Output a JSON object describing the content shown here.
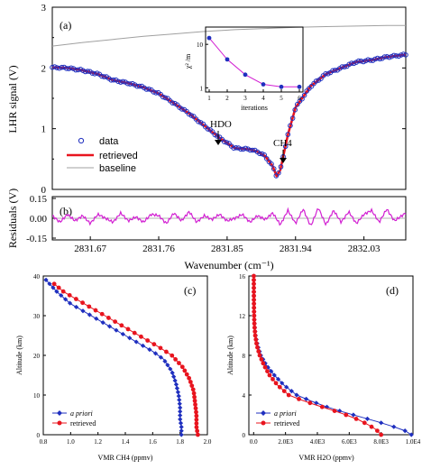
{
  "chart_data": [
    {
      "id": "a",
      "type": "line",
      "panel_label": "(a)",
      "ylabel": "LHR signal (V)",
      "xlim": [
        2831.62,
        2832.085
      ],
      "ylim": [
        0,
        3
      ],
      "yticks": [
        0,
        1,
        2,
        3
      ],
      "ytick_labels": [
        "0",
        "1",
        "2",
        "3"
      ],
      "legend": {
        "position": "lower-left",
        "entries": [
          "data",
          "retrieved",
          "baseline"
        ]
      },
      "annotations": [
        {
          "text": "HDO",
          "x": 2831.845,
          "y": 0.7
        },
        {
          "text": "CH4",
          "x": 2831.915,
          "y": 0.22
        }
      ],
      "series": [
        {
          "name": "data",
          "style": "open-circle",
          "color": "#1f2fbf",
          "x": [
            2831.62,
            2831.64,
            2831.66,
            2831.68,
            2831.7,
            2831.72,
            2831.74,
            2831.76,
            2831.78,
            2831.8,
            2831.82,
            2831.84,
            2831.86,
            2831.88,
            2831.89,
            2831.9,
            2831.91,
            2831.915,
            2831.92,
            2831.93,
            2831.94,
            2831.96,
            2831.98,
            2832.0,
            2832.02,
            2832.04,
            2832.06,
            2832.085
          ],
          "y": [
            2.01,
            2.0,
            1.96,
            1.9,
            1.8,
            1.75,
            1.68,
            1.58,
            1.42,
            1.25,
            1.05,
            0.85,
            0.68,
            0.66,
            0.62,
            0.55,
            0.38,
            0.22,
            0.32,
            0.9,
            1.35,
            1.7,
            1.9,
            2.0,
            2.1,
            2.13,
            2.18,
            2.22
          ]
        },
        {
          "name": "retrieved",
          "style": "line",
          "color": "#e8141e",
          "x": [
            2831.62,
            2831.64,
            2831.66,
            2831.68,
            2831.7,
            2831.72,
            2831.74,
            2831.76,
            2831.78,
            2831.8,
            2831.82,
            2831.84,
            2831.86,
            2831.88,
            2831.89,
            2831.9,
            2831.91,
            2831.915,
            2831.92,
            2831.93,
            2831.94,
            2831.96,
            2831.98,
            2832.0,
            2832.02,
            2832.04,
            2832.06,
            2832.085
          ],
          "y": [
            2.01,
            2.0,
            1.96,
            1.9,
            1.8,
            1.75,
            1.68,
            1.58,
            1.42,
            1.25,
            1.05,
            0.85,
            0.68,
            0.66,
            0.62,
            0.55,
            0.38,
            0.22,
            0.32,
            0.9,
            1.35,
            1.7,
            1.9,
            2.0,
            2.1,
            2.13,
            2.18,
            2.22
          ]
        },
        {
          "name": "baseline",
          "style": "line",
          "color": "#a0a0a0",
          "x": [
            2831.62,
            2831.66,
            2831.7,
            2831.74,
            2831.78,
            2831.82,
            2831.86,
            2831.9,
            2831.94,
            2831.98,
            2832.02,
            2832.06,
            2832.085
          ],
          "y": [
            2.36,
            2.42,
            2.47,
            2.52,
            2.56,
            2.6,
            2.63,
            2.65,
            2.67,
            2.68,
            2.69,
            2.7,
            2.7
          ]
        }
      ],
      "inset": {
        "xlabel": "iterations",
        "ylabel": "χ² /m",
        "xticks": [
          1,
          2,
          3,
          4,
          5,
          6
        ],
        "yticks": [
          1,
          10
        ],
        "ylog": true,
        "x": [
          1,
          2,
          3,
          4,
          5,
          6
        ],
        "y": [
          14,
          4.5,
          2.0,
          1.2,
          1.05,
          1.05
        ]
      }
    },
    {
      "id": "b",
      "type": "line",
      "panel_label": "(b)",
      "ylabel": "Residuals (V)",
      "xlabel": "Wavenumber (cm⁻¹)",
      "xlim": [
        2831.62,
        2832.085
      ],
      "ylim": [
        -0.15,
        0.15
      ],
      "yticks": [
        -0.15,
        0.0,
        0.15
      ],
      "ytick_labels": [
        "-0.15",
        "0.00",
        "0.15"
      ],
      "xticks": [
        2831.67,
        2831.76,
        2831.85,
        2831.94,
        2832.03
      ],
      "xtick_labels": [
        "2831.67",
        "2831.76",
        "2831.85",
        "2831.94",
        "2832.03"
      ],
      "series": [
        {
          "name": "residuals",
          "color": "#d21fd2",
          "x": [
            2831.62,
            2831.63,
            2831.64,
            2831.65,
            2831.66,
            2831.67,
            2831.68,
            2831.69,
            2831.7,
            2831.71,
            2831.72,
            2831.73,
            2831.74,
            2831.75,
            2831.76,
            2831.77,
            2831.78,
            2831.79,
            2831.8,
            2831.81,
            2831.82,
            2831.83,
            2831.84,
            2831.85,
            2831.86,
            2831.87,
            2831.88,
            2831.89,
            2831.9,
            2831.91,
            2831.92,
            2831.93,
            2831.94,
            2831.95,
            2831.96,
            2831.97,
            2831.98,
            2831.99,
            2832.0,
            2832.01,
            2832.02,
            2832.03,
            2832.04,
            2832.05,
            2832.06,
            2832.07,
            2832.085
          ],
          "y": [
            0.02,
            -0.03,
            0.03,
            -0.02,
            0.02,
            -0.04,
            0.03,
            0.0,
            -0.03,
            0.04,
            -0.02,
            0.01,
            -0.03,
            0.03,
            0.02,
            -0.04,
            0.04,
            -0.02,
            0.05,
            -0.03,
            0.02,
            -0.01,
            0.03,
            -0.02,
            0.0,
            0.03,
            -0.03,
            0.02,
            -0.01,
            0.04,
            -0.05,
            0.06,
            -0.04,
            0.07,
            -0.06,
            0.08,
            -0.05,
            0.06,
            -0.03,
            0.05,
            -0.04,
            0.03,
            0.06,
            -0.03,
            0.07,
            -0.02,
            0.04
          ]
        }
      ]
    },
    {
      "id": "c",
      "type": "line",
      "panel_label": "(c)",
      "xlabel": "VMR CH4 (ppmv)",
      "ylabel": "Altitude (km)",
      "xlim": [
        0.8,
        2.0
      ],
      "ylim": [
        0,
        40
      ],
      "xticks": [
        0.8,
        1.0,
        1.2,
        1.4,
        1.6,
        1.8,
        2.0
      ],
      "xtick_labels": [
        "0.8",
        "1.0",
        "1.2",
        "1.4",
        "1.6",
        "1.8",
        "2.0"
      ],
      "yticks": [
        0,
        10,
        20,
        30,
        40
      ],
      "ytick_labels": [
        "0",
        "10",
        "20",
        "30",
        "40"
      ],
      "legend": {
        "position": "lower-left",
        "entries": [
          "a priori",
          "retrieved"
        ]
      },
      "series": [
        {
          "name": "a priori",
          "color": "#1f2fbf",
          "marker": "diamond",
          "x": [
            0.82,
            0.9,
            1.0,
            1.1,
            1.2,
            1.3,
            1.4,
            1.5,
            1.6,
            1.68,
            1.74,
            1.77,
            1.79,
            1.8,
            1.8,
            1.81,
            1.81
          ],
          "y": [
            39,
            36,
            33,
            31,
            29,
            27,
            25,
            23,
            21,
            19,
            16,
            13,
            10,
            7,
            4,
            2,
            0
          ]
        },
        {
          "name": "retrieved",
          "color": "#e8141e",
          "marker": "circle",
          "x": [
            0.88,
            0.95,
            1.05,
            1.15,
            1.25,
            1.35,
            1.45,
            1.55,
            1.65,
            1.74,
            1.82,
            1.87,
            1.9,
            1.91,
            1.92,
            1.92,
            1.93
          ],
          "y": [
            38,
            36,
            34,
            32,
            30,
            28,
            26,
            24,
            22,
            20,
            17,
            14,
            11,
            8,
            5,
            2,
            0
          ]
        }
      ]
    },
    {
      "id": "d",
      "type": "line",
      "panel_label": "(d)",
      "xlabel": "VMR H2O (ppmv)",
      "ylabel": "Altitude (km)",
      "xlim": [
        -300,
        10000
      ],
      "ylim": [
        0,
        16
      ],
      "xticks": [
        0,
        2000,
        4000,
        6000,
        8000,
        10000
      ],
      "xtick_labels": [
        "0.0",
        "2.0E3",
        "4.0E3",
        "6.0E3",
        "8.0E3",
        "1.0E4"
      ],
      "yticks": [
        0,
        4,
        8,
        12,
        16
      ],
      "ytick_labels": [
        "0",
        "4",
        "8",
        "12",
        "16"
      ],
      "legend": {
        "position": "lower-left",
        "entries": [
          "a priori",
          "retrieved"
        ]
      },
      "series": [
        {
          "name": "a priori",
          "color": "#1f2fbf",
          "marker": "diamond",
          "x": [
            10,
            12,
            15,
            20,
            30,
            60,
            120,
            250,
            450,
            800,
            1300,
            1900,
            2700,
            3600,
            4600,
            5600,
            6700,
            7800,
            8800,
            9500,
            9900
          ],
          "y": [
            16,
            15,
            14,
            13,
            12,
            11,
            10,
            9,
            8,
            7,
            6,
            5,
            4,
            3.4,
            2.8,
            2.3,
            1.8,
            1.3,
            0.8,
            0.4,
            0
          ]
        },
        {
          "name": "retrieved",
          "color": "#e8141e",
          "marker": "circle",
          "x": [
            10,
            12,
            15,
            20,
            30,
            50,
            100,
            200,
            380,
            650,
            1000,
            1500,
            2200,
            3000,
            3900,
            4900,
            5800,
            6600,
            7200,
            7700,
            8000
          ],
          "y": [
            16,
            15,
            14,
            13,
            12,
            11,
            10,
            9,
            8,
            7,
            6,
            5,
            4,
            3.5,
            3,
            2.5,
            2,
            1.5,
            1,
            0.5,
            0
          ]
        }
      ]
    }
  ]
}
